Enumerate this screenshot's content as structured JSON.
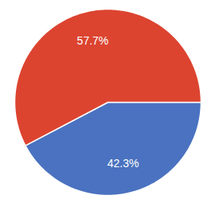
{
  "chart_data": {
    "type": "pie",
    "values": [
      42.3,
      57.7
    ],
    "value_labels": [
      "42.3%",
      "57.7%"
    ],
    "colors": [
      "#4a72c0",
      "#dc4430"
    ],
    "data_labels": true
  }
}
